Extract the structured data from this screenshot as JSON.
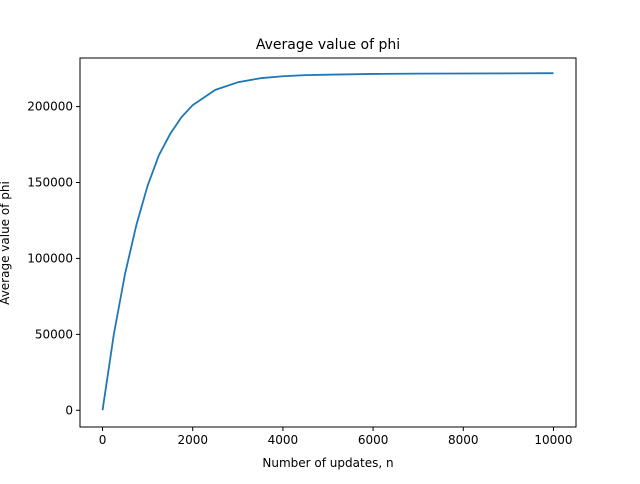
{
  "chart_data": {
    "type": "line",
    "title": "Average value of phi",
    "xlabel": "Number of updates, n",
    "ylabel": "Average value of phi",
    "xlim": [
      -500,
      10500
    ],
    "ylim": [
      -11000,
      232000
    ],
    "x_ticks": [
      0,
      2000,
      4000,
      6000,
      8000,
      10000
    ],
    "x_tick_labels": [
      "0",
      "2000",
      "4000",
      "6000",
      "8000",
      "10000"
    ],
    "y_ticks": [
      0,
      50000,
      100000,
      150000,
      200000
    ],
    "y_tick_labels": [
      "0",
      "50000",
      "100000",
      "150000",
      "200000"
    ],
    "grid": false,
    "legend": "none",
    "series": [
      {
        "color": "#1f77b4",
        "x": [
          0,
          250,
          500,
          750,
          1000,
          1250,
          1500,
          1750,
          2000,
          2500,
          3000,
          3500,
          4000,
          4500,
          5000,
          6000,
          7000,
          8000,
          9000,
          10000
        ],
        "y": [
          0,
          50000,
          90000,
          122000,
          148000,
          168000,
          182000,
          193000,
          201000,
          211000,
          216000,
          218700,
          220000,
          220700,
          221000,
          221500,
          221700,
          221800,
          221900,
          222000
        ]
      }
    ]
  }
}
